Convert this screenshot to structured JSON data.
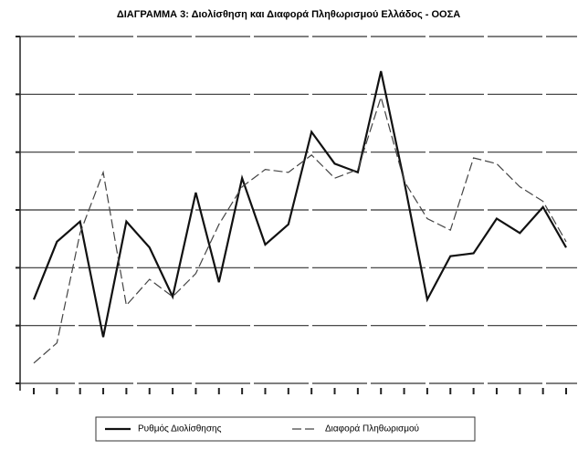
{
  "chart_data": {
    "type": "line",
    "title": "ΔΙΑΓΡΑΜΜΑ 3: Διολίσθηση και Διαφορά Πληθωρισμού Ελλάδος - ΟΟΣΑ",
    "categories": [
      null,
      null,
      null,
      null,
      null,
      null,
      null,
      null,
      null,
      null,
      null,
      null,
      null,
      null,
      null,
      null,
      null,
      null,
      null,
      null,
      null,
      null,
      null,
      null
    ],
    "series": [
      {
        "name": "Ρυθμός Διολίσθησης",
        "color": "#111111",
        "dash": false,
        "values": [
          1.45,
          2.45,
          2.8,
          0.8,
          2.8,
          2.35,
          1.5,
          3.3,
          1.75,
          3.55,
          2.4,
          2.75,
          4.35,
          3.8,
          3.65,
          5.4,
          3.5,
          1.45,
          2.2,
          2.25,
          2.85,
          2.6,
          3.05,
          2.35
        ]
      },
      {
        "name": "Διαφορά Πληθωρισμού",
        "color": "#444444",
        "dash": true,
        "values": [
          0.35,
          0.7,
          2.6,
          3.65,
          1.35,
          1.8,
          1.5,
          1.9,
          2.75,
          3.4,
          3.7,
          3.65,
          3.95,
          3.55,
          3.7,
          4.95,
          3.5,
          2.85,
          2.65,
          3.9,
          3.8,
          3.4,
          3.15,
          2.45
        ]
      }
    ],
    "ylim": [
      0,
      6
    ],
    "yticks": [
      0,
      1,
      2,
      3,
      4,
      5,
      6
    ],
    "grid": true,
    "legend": "bottom"
  }
}
